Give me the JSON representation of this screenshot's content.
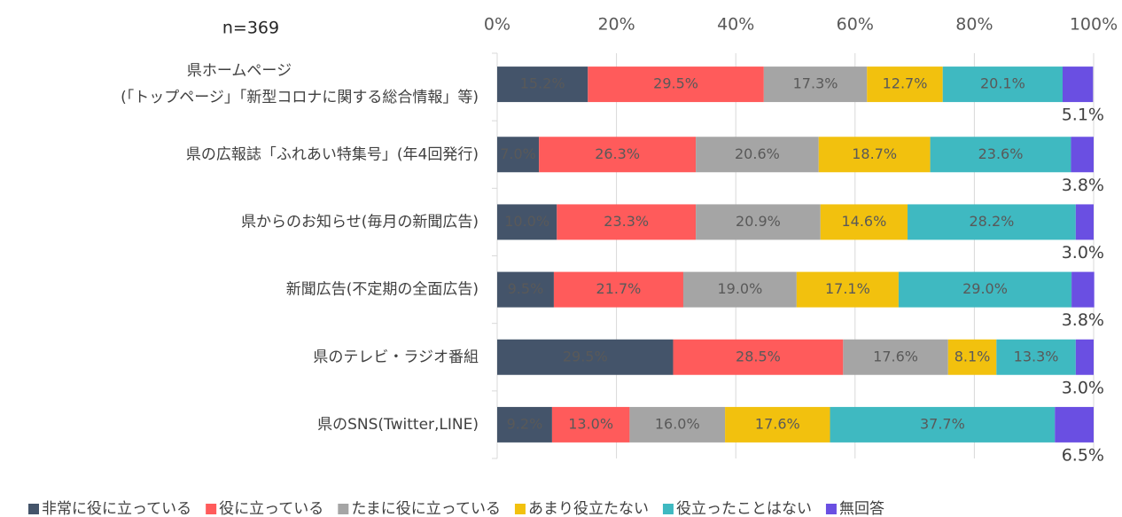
{
  "chart_data": {
    "type": "stacked-bar-horizontal",
    "annotation": "n=369",
    "categories": [
      [
        "県ホームページ",
        "(「トップページ」「新型コロナに関する総合情報」等)"
      ],
      [
        "県の広報誌「ふれあい特集号」(年4回発行)"
      ],
      [
        "県からのお知らせ(毎月の新聞広告)"
      ],
      [
        "新聞広告(不定期の全面広告)"
      ],
      [
        "県のテレビ・ラジオ番組"
      ],
      [
        "県のSNS(Twitter,LINE)"
      ]
    ],
    "series": [
      {
        "name": "非常に役に立っている",
        "color": "#44546a",
        "values": [
          15.2,
          7.0,
          10.0,
          9.5,
          29.5,
          9.2
        ],
        "value_labels": [
          "15.2%",
          "7.0%",
          "10.0%",
          "9.5%",
          "29.5%",
          "9.2%"
        ]
      },
      {
        "name": "役に立っている",
        "color": "#ff5b5b",
        "values": [
          29.5,
          26.3,
          23.3,
          21.7,
          28.5,
          13.0
        ],
        "value_labels": [
          "29.5%",
          "26.3%",
          "23.3%",
          "21.7%",
          "28.5%",
          "13.0%"
        ]
      },
      {
        "name": "たまに役に立っている",
        "color": "#a5a5a5",
        "values": [
          17.3,
          20.6,
          20.9,
          19.0,
          17.6,
          16.0
        ],
        "value_labels": [
          "17.3%",
          "20.6%",
          "20.9%",
          "19.0%",
          "17.6%",
          "16.0%"
        ]
      },
      {
        "name": "あまり役立たない",
        "color": "#f2c10e",
        "values": [
          12.7,
          18.7,
          14.6,
          17.1,
          8.1,
          17.6
        ],
        "value_labels": [
          "12.7%",
          "18.7%",
          "14.6%",
          "17.1%",
          "8.1%",
          "17.6%"
        ]
      },
      {
        "name": "役立ったことはない",
        "color": "#3fb9c1",
        "values": [
          20.1,
          23.6,
          28.2,
          29.0,
          13.3,
          37.7
        ],
        "value_labels": [
          "20.1%",
          "23.6%",
          "28.2%",
          "29.0%",
          "13.3%",
          "37.7%"
        ]
      },
      {
        "name": "無回答",
        "color": "#6a4fe2",
        "values": [
          5.1,
          3.8,
          3.0,
          3.8,
          3.0,
          6.5
        ],
        "value_labels": [
          "5.1%",
          "3.8%",
          "3.0%",
          "3.8%",
          "3.0%",
          "6.5%"
        ]
      }
    ],
    "xlim": [
      0,
      100
    ],
    "xticks": [
      {
        "value": 0,
        "label": "0%"
      },
      {
        "value": 20,
        "label": "20%"
      },
      {
        "value": 40,
        "label": "40%"
      },
      {
        "value": 60,
        "label": "60%"
      },
      {
        "value": 80,
        "label": "80%"
      },
      {
        "value": 100,
        "label": "100%"
      }
    ],
    "grid": true,
    "legend": "bottom"
  }
}
